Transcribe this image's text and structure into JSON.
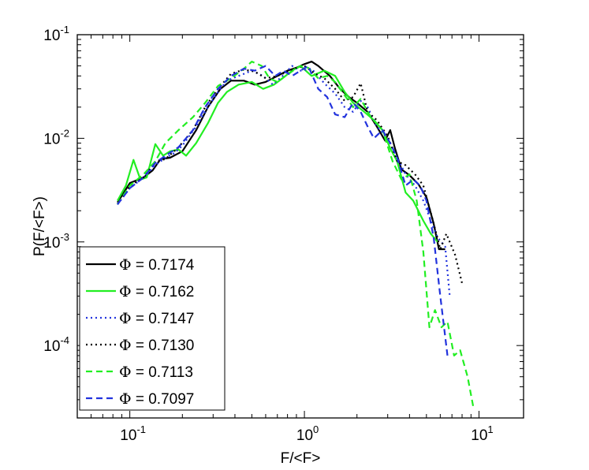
{
  "chart_data": {
    "type": "line",
    "title": "",
    "xlabel": "F/<F>",
    "ylabel": "P(F/<F>)",
    "xscale": "log",
    "yscale": "log",
    "xlim": [
      0.05,
      18
    ],
    "ylim": [
      2e-05,
      0.1
    ],
    "grid": false,
    "legend_position": "lower-left",
    "x_ticks": [
      {
        "value": 0.1,
        "base": "10",
        "exp": "-1"
      },
      {
        "value": 1,
        "base": "10",
        "exp": "0"
      },
      {
        "value": 10,
        "base": "10",
        "exp": "1"
      }
    ],
    "y_ticks": [
      {
        "value": 0.0001,
        "base": "10",
        "exp": "-4"
      },
      {
        "value": 0.001,
        "base": "10",
        "exp": "-3"
      },
      {
        "value": 0.01,
        "base": "10",
        "exp": "-2"
      },
      {
        "value": 0.1,
        "base": "10",
        "exp": "-1"
      }
    ],
    "series": [
      {
        "name": "Φ = 0.7174",
        "legend_symbol": "Φ",
        "legend_value": " = 0.7174",
        "color": "#000000",
        "style": "solid",
        "points": [
          [
            0.085,
            0.0024
          ],
          [
            0.1,
            0.0037
          ],
          [
            0.12,
            0.0042
          ],
          [
            0.135,
            0.0049
          ],
          [
            0.15,
            0.0063
          ],
          [
            0.17,
            0.0065
          ],
          [
            0.2,
            0.0075
          ],
          [
            0.24,
            0.012
          ],
          [
            0.28,
            0.02
          ],
          [
            0.33,
            0.03
          ],
          [
            0.38,
            0.036
          ],
          [
            0.45,
            0.036
          ],
          [
            0.52,
            0.033
          ],
          [
            0.6,
            0.035
          ],
          [
            0.7,
            0.04
          ],
          [
            0.8,
            0.045
          ],
          [
            0.9,
            0.048
          ],
          [
            1.0,
            0.052
          ],
          [
            1.1,
            0.055
          ],
          [
            1.2,
            0.05
          ],
          [
            1.4,
            0.04
          ],
          [
            1.6,
            0.03
          ],
          [
            1.8,
            0.025
          ],
          [
            2.0,
            0.022
          ],
          [
            2.3,
            0.018
          ],
          [
            2.6,
            0.013
          ],
          [
            2.9,
            0.0095
          ],
          [
            3.1,
            0.012
          ],
          [
            3.3,
            0.008
          ],
          [
            3.6,
            0.005
          ],
          [
            4.0,
            0.0044
          ],
          [
            4.5,
            0.0036
          ],
          [
            5.0,
            0.0027
          ],
          [
            5.5,
            0.0015
          ],
          [
            5.9,
            0.00085
          ],
          [
            6.4,
            0.00085
          ]
        ]
      },
      {
        "name": "Φ = 0.7162",
        "legend_symbol": "Φ",
        "legend_value": " = 0.7162",
        "color": "#22ee22",
        "style": "solid",
        "points": [
          [
            0.085,
            0.0025
          ],
          [
            0.095,
            0.0035
          ],
          [
            0.105,
            0.0062
          ],
          [
            0.115,
            0.004
          ],
          [
            0.125,
            0.0042
          ],
          [
            0.14,
            0.0088
          ],
          [
            0.155,
            0.0068
          ],
          [
            0.17,
            0.0075
          ],
          [
            0.19,
            0.0078
          ],
          [
            0.21,
            0.0068
          ],
          [
            0.24,
            0.009
          ],
          [
            0.28,
            0.014
          ],
          [
            0.32,
            0.022
          ],
          [
            0.36,
            0.028
          ],
          [
            0.42,
            0.033
          ],
          [
            0.5,
            0.035
          ],
          [
            0.58,
            0.03
          ],
          [
            0.67,
            0.033
          ],
          [
            0.75,
            0.038
          ],
          [
            0.85,
            0.045
          ],
          [
            0.95,
            0.05
          ],
          [
            1.1,
            0.04
          ],
          [
            1.3,
            0.045
          ],
          [
            1.5,
            0.04
          ],
          [
            1.7,
            0.028
          ],
          [
            1.9,
            0.022
          ],
          [
            2.2,
            0.018
          ],
          [
            2.5,
            0.015
          ],
          [
            2.8,
            0.012
          ],
          [
            3.1,
            0.008
          ],
          [
            3.4,
            0.006
          ],
          [
            3.8,
            0.003
          ],
          [
            4.2,
            0.0025
          ],
          [
            4.8,
            0.0016
          ],
          [
            5.3,
            0.0012
          ],
          [
            5.8,
            0.001
          ]
        ]
      },
      {
        "name": "Φ = 0.7147",
        "legend_symbol": "Φ",
        "legend_value": " = 0.7147",
        "color": "#2233dd",
        "style": "dotted",
        "points": [
          [
            0.085,
            0.0023
          ],
          [
            0.1,
            0.0033
          ],
          [
            0.12,
            0.0042
          ],
          [
            0.14,
            0.0055
          ],
          [
            0.16,
            0.0065
          ],
          [
            0.18,
            0.0072
          ],
          [
            0.2,
            0.0085
          ],
          [
            0.24,
            0.013
          ],
          [
            0.28,
            0.02
          ],
          [
            0.32,
            0.028
          ],
          [
            0.36,
            0.036
          ],
          [
            0.42,
            0.04
          ],
          [
            0.5,
            0.045
          ],
          [
            0.58,
            0.04
          ],
          [
            0.66,
            0.033
          ],
          [
            0.75,
            0.04
          ],
          [
            0.85,
            0.05
          ],
          [
            0.95,
            0.045
          ],
          [
            1.1,
            0.047
          ],
          [
            1.3,
            0.034
          ],
          [
            1.5,
            0.027
          ],
          [
            1.7,
            0.02
          ],
          [
            1.9,
            0.018
          ],
          [
            2.1,
            0.023
          ],
          [
            2.3,
            0.02
          ],
          [
            2.6,
            0.013
          ],
          [
            3.0,
            0.01
          ],
          [
            3.4,
            0.0065
          ],
          [
            3.8,
            0.0045
          ],
          [
            4.3,
            0.0035
          ],
          [
            4.8,
            0.0025
          ],
          [
            5.3,
            0.0016
          ],
          [
            5.8,
            0.0011
          ],
          [
            6.4,
            0.0009
          ],
          [
            6.8,
            0.0003
          ]
        ]
      },
      {
        "name": "Φ = 0.7130",
        "legend_symbol": "Φ",
        "legend_value": " = 0.7130",
        "color": "#000000",
        "style": "dotted",
        "points": [
          [
            0.085,
            0.0023
          ],
          [
            0.1,
            0.0035
          ],
          [
            0.12,
            0.0042
          ],
          [
            0.14,
            0.006
          ],
          [
            0.16,
            0.0063
          ],
          [
            0.19,
            0.0082
          ],
          [
            0.23,
            0.012
          ],
          [
            0.27,
            0.02
          ],
          [
            0.32,
            0.03
          ],
          [
            0.38,
            0.042
          ],
          [
            0.45,
            0.046
          ],
          [
            0.52,
            0.044
          ],
          [
            0.6,
            0.038
          ],
          [
            0.7,
            0.04
          ],
          [
            0.8,
            0.044
          ],
          [
            0.9,
            0.048
          ],
          [
            1.0,
            0.05
          ],
          [
            1.15,
            0.042
          ],
          [
            1.3,
            0.038
          ],
          [
            1.5,
            0.03
          ],
          [
            1.7,
            0.023
          ],
          [
            1.9,
            0.025
          ],
          [
            2.1,
            0.034
          ],
          [
            2.3,
            0.018
          ],
          [
            2.6,
            0.015
          ],
          [
            3.0,
            0.0105
          ],
          [
            3.4,
            0.006
          ],
          [
            3.8,
            0.0055
          ],
          [
            4.3,
            0.0045
          ],
          [
            4.8,
            0.0035
          ],
          [
            5.4,
            0.0017
          ],
          [
            6.0,
            0.00085
          ],
          [
            6.5,
            0.0012
          ],
          [
            7.3,
            0.00075
          ],
          [
            8.0,
            0.0004
          ]
        ]
      },
      {
        "name": "Φ = 0.7113",
        "legend_symbol": "Φ",
        "legend_value": " = 0.7113",
        "color": "#22ee22",
        "style": "dashed",
        "points": [
          [
            0.085,
            0.0023
          ],
          [
            0.1,
            0.0035
          ],
          [
            0.12,
            0.0045
          ],
          [
            0.14,
            0.006
          ],
          [
            0.16,
            0.009
          ],
          [
            0.19,
            0.012
          ],
          [
            0.23,
            0.016
          ],
          [
            0.27,
            0.022
          ],
          [
            0.32,
            0.032
          ],
          [
            0.38,
            0.038
          ],
          [
            0.45,
            0.047
          ],
          [
            0.5,
            0.055
          ],
          [
            0.57,
            0.05
          ],
          [
            0.63,
            0.038
          ],
          [
            0.7,
            0.035
          ],
          [
            0.78,
            0.04
          ],
          [
            0.86,
            0.045
          ],
          [
            0.95,
            0.05
          ],
          [
            1.05,
            0.048
          ],
          [
            1.2,
            0.038
          ],
          [
            1.35,
            0.04
          ],
          [
            1.5,
            0.035
          ],
          [
            1.7,
            0.026
          ],
          [
            1.9,
            0.02
          ],
          [
            2.1,
            0.024
          ],
          [
            2.4,
            0.016
          ],
          [
            2.8,
            0.012
          ],
          [
            3.2,
            0.006
          ],
          [
            3.6,
            0.004
          ],
          [
            4.0,
            0.0045
          ],
          [
            4.4,
            0.0025
          ],
          [
            4.8,
            0.0008
          ],
          [
            5.2,
            0.00015
          ],
          [
            5.6,
            0.00022
          ],
          [
            6.1,
            0.00015
          ],
          [
            6.6,
            0.00017
          ],
          [
            7.2,
            8e-05
          ],
          [
            7.8,
            9e-05
          ],
          [
            8.6,
            5e-05
          ],
          [
            9.3,
            2.5e-05
          ]
        ]
      },
      {
        "name": "Φ = 0.7097",
        "legend_symbol": "Φ",
        "legend_value": " = 0.7097",
        "color": "#2233dd",
        "style": "dashed",
        "points": [
          [
            0.085,
            0.0023
          ],
          [
            0.1,
            0.0033
          ],
          [
            0.12,
            0.0042
          ],
          [
            0.14,
            0.0058
          ],
          [
            0.16,
            0.0068
          ],
          [
            0.19,
            0.0082
          ],
          [
            0.23,
            0.012
          ],
          [
            0.27,
            0.02
          ],
          [
            0.32,
            0.03
          ],
          [
            0.38,
            0.04
          ],
          [
            0.45,
            0.047
          ],
          [
            0.52,
            0.045
          ],
          [
            0.6,
            0.05
          ],
          [
            0.68,
            0.04
          ],
          [
            0.76,
            0.045
          ],
          [
            0.85,
            0.04
          ],
          [
            0.95,
            0.045
          ],
          [
            1.05,
            0.05
          ],
          [
            1.2,
            0.03
          ],
          [
            1.35,
            0.025
          ],
          [
            1.5,
            0.017
          ],
          [
            1.7,
            0.016
          ],
          [
            1.9,
            0.022
          ],
          [
            2.1,
            0.018
          ],
          [
            2.3,
            0.013
          ],
          [
            2.5,
            0.01
          ],
          [
            2.8,
            0.012
          ],
          [
            3.1,
            0.009
          ],
          [
            3.4,
            0.0065
          ],
          [
            3.8,
            0.0035
          ],
          [
            4.2,
            0.004
          ],
          [
            4.6,
            0.0035
          ],
          [
            5.0,
            0.0025
          ],
          [
            5.5,
            0.0011
          ],
          [
            6.0,
            0.0003
          ],
          [
            6.6,
            8e-05
          ]
        ]
      }
    ]
  }
}
